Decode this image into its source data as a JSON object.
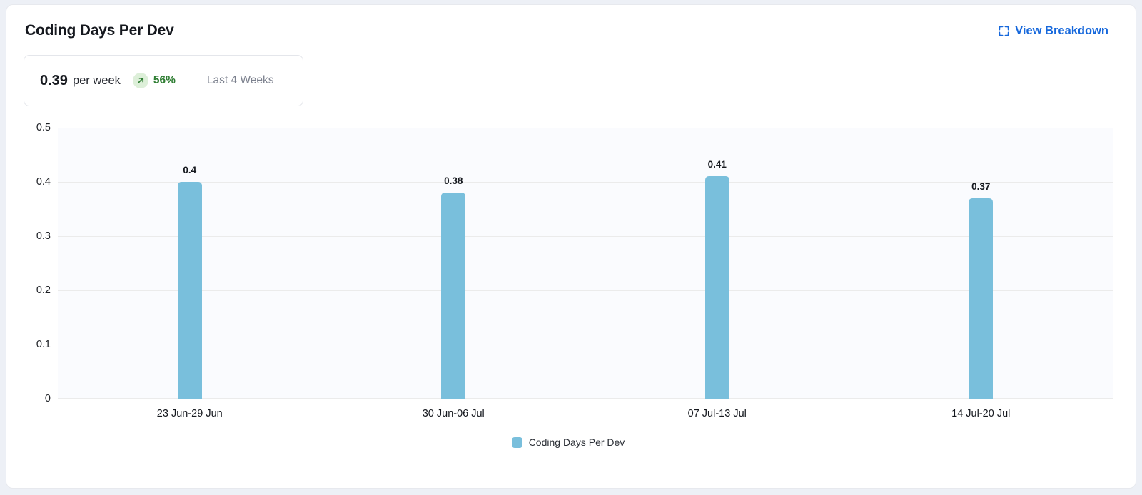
{
  "header": {
    "title": "Coding Days Per Dev",
    "breakdown_label": "View Breakdown"
  },
  "summary": {
    "value": "0.39",
    "unit": "per week",
    "trend_pct": "56%",
    "trend_direction": "up",
    "period": "Last 4 Weeks"
  },
  "colors": {
    "bar": "#79bfdc",
    "link_blue": "#1668dc",
    "trend_green": "#2e7d32",
    "trend_badge_bg": "#ddefd9",
    "plot_bg": "#fafbfe",
    "gridline": "#ebebeb"
  },
  "chart_data": {
    "type": "bar",
    "title": "Coding Days Per Dev",
    "categories": [
      "23 Jun-29 Jun",
      "30 Jun-06 Jul",
      "07 Jul-13 Jul",
      "14 Jul-20 Jul"
    ],
    "values": [
      0.4,
      0.38,
      0.41,
      0.37
    ],
    "value_labels": [
      "0.4",
      "0.38",
      "0.41",
      "0.37"
    ],
    "xlabel": "",
    "ylabel": "",
    "ylim": [
      0,
      0.5
    ],
    "y_ticks": [
      0,
      0.1,
      0.2,
      0.3,
      0.4,
      0.5
    ],
    "y_tick_labels": [
      "0",
      "0.1",
      "0.2",
      "0.3",
      "0.4",
      "0.5"
    ],
    "grid": true,
    "legend": [
      {
        "label": "Coding Days Per Dev",
        "color": "#79bfdc"
      }
    ],
    "legend_position": "bottom"
  }
}
